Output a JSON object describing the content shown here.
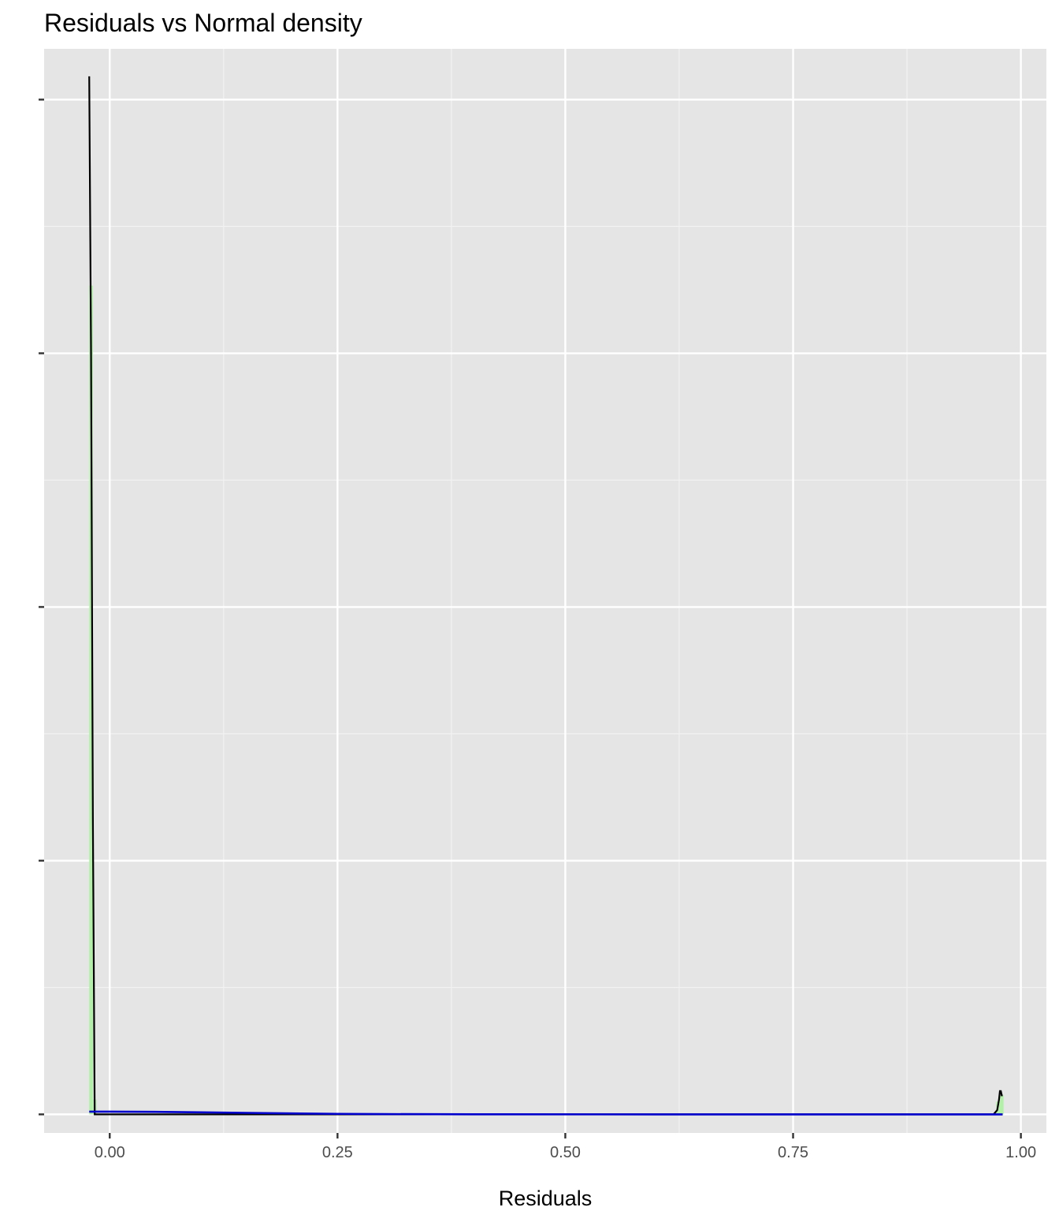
{
  "chart_data": {
    "type": "area",
    "title": "Residuals vs Normal density",
    "xlabel": "Residuals",
    "ylabel": "",
    "xlim": [
      -0.072,
      1.028
    ],
    "ylim": [
      -0.44,
      25.2
    ],
    "x_ticks": [
      {
        "value": 0.0,
        "label": "0.00"
      },
      {
        "value": 0.25,
        "label": "0.25"
      },
      {
        "value": 0.5,
        "label": "0.50"
      },
      {
        "value": 0.75,
        "label": "0.75"
      },
      {
        "value": 1.0,
        "label": "1.00"
      }
    ],
    "y_ticks": [
      0,
      6,
      12,
      18,
      24
    ],
    "y_tick_labels_shown": false,
    "grid": true,
    "series": [
      {
        "kind": "histogram",
        "fill": "#b2f0a8",
        "bars": [
          {
            "x0": -0.0225,
            "x1": -0.0185,
            "y": 19.6
          },
          {
            "x0": -0.0185,
            "x1": -0.0145,
            "y": 0.35
          },
          {
            "x0": 0.973,
            "x1": 0.977,
            "y": 0.3
          },
          {
            "x0": 0.977,
            "x1": 0.981,
            "y": 0.45
          }
        ]
      },
      {
        "kind": "density",
        "color": "#000000",
        "x": [
          -0.0225,
          -0.0205,
          -0.0185,
          -0.0165,
          0.0,
          0.2,
          0.5,
          0.97,
          0.974,
          0.976,
          0.977,
          0.978,
          0.979,
          0.98
        ],
        "y": [
          24.55,
          18.0,
          7.0,
          0.0,
          0.0,
          0.0,
          0.0,
          0.0,
          0.1,
          0.35,
          0.55,
          0.55,
          0.45,
          0.45
        ]
      },
      {
        "kind": "normal-density",
        "color": "#0000cc",
        "x": [
          -0.0225,
          0.0,
          0.05,
          0.1,
          0.15,
          0.2,
          0.25,
          0.3,
          0.4,
          0.6,
          0.8,
          0.98
        ],
        "y": [
          0.065,
          0.065,
          0.06,
          0.048,
          0.035,
          0.022,
          0.012,
          0.006,
          0.001,
          0.0,
          0.0,
          0.0
        ]
      }
    ]
  }
}
